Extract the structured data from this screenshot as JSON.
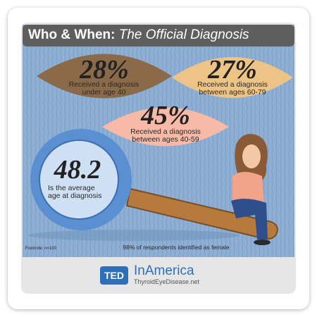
{
  "header": {
    "title": "Who & When:",
    "subtitle": "The Official Diagnosis"
  },
  "stats": [
    {
      "value": "28%",
      "label": "Received a diagnosis under age 40"
    },
    {
      "value": "27%",
      "label": "Received a diagnosis between ages 60-79"
    },
    {
      "value": "45%",
      "label": "Received a diagnosis between ages 40-59"
    },
    {
      "value": "48.2",
      "label": "Is the average age at diagnosis"
    }
  ],
  "footnote": "Footnote: n=100",
  "note": "98% of respondents identified as female",
  "logo": {
    "badge": "TED",
    "brand": "InAmerica",
    "url": "ThyroidEyeDisease.net"
  }
}
